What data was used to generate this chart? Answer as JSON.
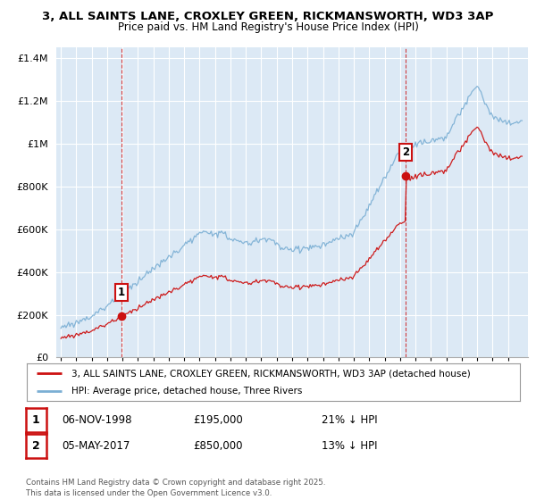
{
  "title_line1": "3, ALL SAINTS LANE, CROXLEY GREEN, RICKMANSWORTH, WD3 3AP",
  "title_line2": "Price paid vs. HM Land Registry's House Price Index (HPI)",
  "background_color": "#ffffff",
  "plot_bg_color": "#dce9f5",
  "grid_color": "#ffffff",
  "hpi_color": "#7bafd4",
  "price_color": "#cc1111",
  "annotation1": {
    "label": "1",
    "date": "06-NOV-1998",
    "price": "£195,000",
    "pct": "21% ↓ HPI"
  },
  "annotation2": {
    "label": "2",
    "date": "05-MAY-2017",
    "price": "£850,000",
    "pct": "13% ↓ HPI"
  },
  "legend_line1": "3, ALL SAINTS LANE, CROXLEY GREEN, RICKMANSWORTH, WD3 3AP (detached house)",
  "legend_line2": "HPI: Average price, detached house, Three Rivers",
  "footer": "Contains HM Land Registry data © Crown copyright and database right 2025.\nThis data is licensed under the Open Government Licence v3.0.",
  "purchase1_x": 1998.92,
  "purchase1_y": 195000,
  "purchase2_x": 2017.35,
  "purchase2_y": 850000,
  "ylim": [
    0,
    1450000
  ],
  "xlim": [
    1994.7,
    2025.3
  ]
}
